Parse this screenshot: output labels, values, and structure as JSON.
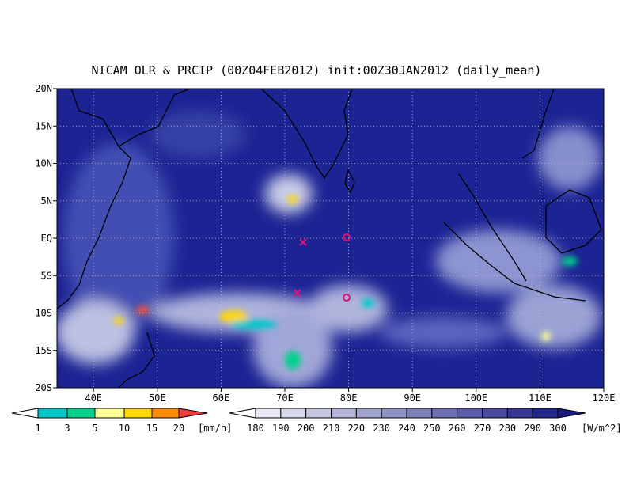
{
  "title": "NICAM OLR & PRCIP (00Z04FEB2012) init:00Z30JAN2012 (daily_mean)",
  "lat_labels": [
    "20N",
    "15N",
    "10N",
    "5N",
    "EQ",
    "5S",
    "10S",
    "15S",
    "20S"
  ],
  "lon_labels": [
    "40E",
    "50E",
    "60E",
    "70E",
    "80E",
    "90E",
    "100E",
    "110E",
    "120E"
  ],
  "precip_colorbar": {
    "labels": [
      1,
      3,
      5,
      10,
      15,
      20
    ],
    "unit": "[mm/h]"
  },
  "olr_colorbar": {
    "labels": [
      180,
      190,
      200,
      210,
      220,
      230,
      240,
      250,
      260,
      270,
      280,
      290,
      300
    ],
    "unit": "[W/m^2]"
  }
}
